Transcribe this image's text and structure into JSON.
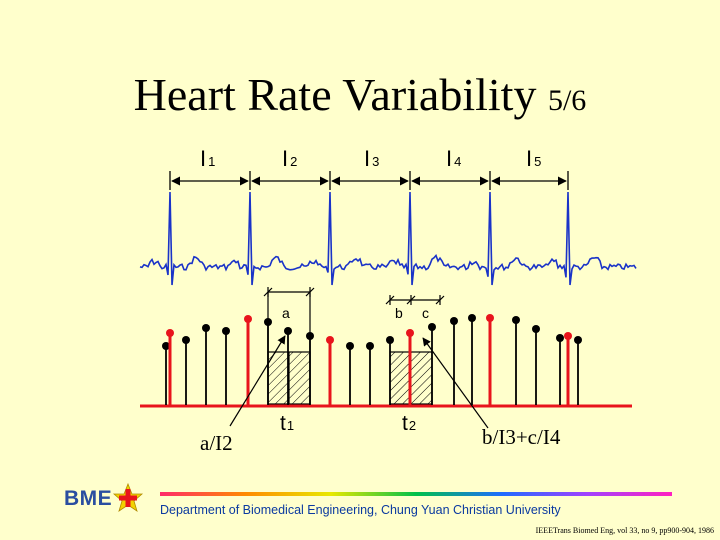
{
  "title": {
    "main": "Heart Rate Variability",
    "fraction": "5/6"
  },
  "intervals": [
    {
      "letter": "I",
      "sub": "1"
    },
    {
      "letter": "I",
      "sub": "2"
    },
    {
      "letter": "I",
      "sub": "3"
    },
    {
      "letter": "I",
      "sub": "4"
    },
    {
      "letter": "I",
      "sub": "5"
    }
  ],
  "labels": {
    "a": "a",
    "b": "b",
    "c": "c",
    "t1": {
      "letter": "t",
      "sub": "1"
    },
    "t2": {
      "letter": "t",
      "sub": "2"
    },
    "formula_a": "a/I2",
    "formula_bc": "b/I3+c/I4"
  },
  "colors": {
    "ecg": "#1a33c8",
    "event": "#e8141c",
    "sample": "#000000"
  },
  "footer": {
    "logo": "BME",
    "department": "Department of Biomedical Engineering, Chung Yuan Christian University",
    "reference": "IEEETrans Biomed Eng, vol 33, no 9, pp900-904, 1986"
  }
}
